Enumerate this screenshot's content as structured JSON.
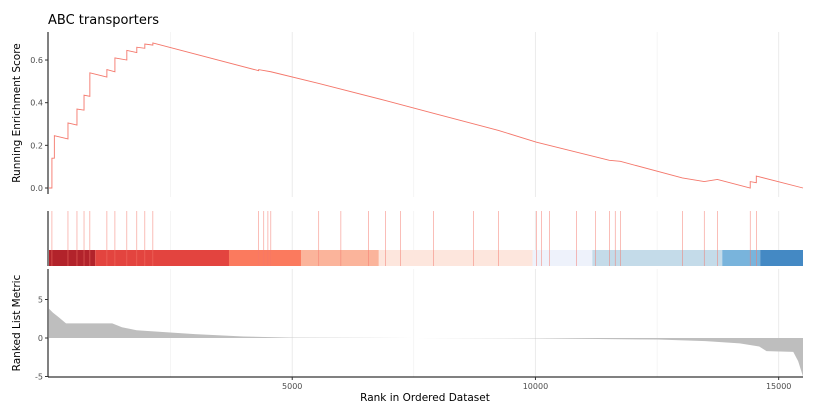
{
  "chart_data": {
    "type": "line",
    "title": "ABC transporters",
    "xlabel": "Rank in Ordered Dataset",
    "ylabel_top": "Running Enrichment Score",
    "ylabel_bottom": "Ranked List Metric",
    "xlim": [
      0,
      15500
    ],
    "x_ticks": [
      5000,
      10000,
      15000
    ],
    "x_tick_labels": [
      "5000",
      "10000",
      "15000"
    ],
    "es_ylim": [
      0,
      0.7
    ],
    "es_ticks": [
      0.0,
      0.2,
      0.4,
      0.6
    ],
    "es_tick_labels": [
      "0.0",
      "0.2",
      "0.4",
      "0.6"
    ],
    "metric_ylim": [
      -5,
      9
    ],
    "metric_ticks": [
      -5,
      0,
      5
    ],
    "metric_tick_labels": [
      "-5",
      "0",
      "5"
    ],
    "es_color": "#F4776B",
    "metric_color": "#BEBEBE",
    "running_es": [
      [
        0,
        0
      ],
      [
        60,
        0
      ],
      [
        60,
        0.14
      ],
      [
        110,
        0.14
      ],
      [
        110,
        0.245
      ],
      [
        390,
        0.23
      ],
      [
        390,
        0.305
      ],
      [
        575,
        0.295
      ],
      [
        575,
        0.37
      ],
      [
        720,
        0.365
      ],
      [
        720,
        0.435
      ],
      [
        840,
        0.43
      ],
      [
        840,
        0.54
      ],
      [
        1190,
        0.52
      ],
      [
        1190,
        0.555
      ],
      [
        1355,
        0.545
      ],
      [
        1355,
        0.61
      ],
      [
        1600,
        0.6
      ],
      [
        1600,
        0.645
      ],
      [
        1805,
        0.635
      ],
      [
        1805,
        0.66
      ],
      [
        1970,
        0.655
      ],
      [
        1970,
        0.675
      ],
      [
        2135,
        0.67
      ],
      [
        2135,
        0.68
      ],
      [
        4310,
        0.55
      ],
      [
        4310,
        0.555
      ],
      [
        4560,
        0.545
      ],
      [
        5545,
        0.49
      ],
      [
        6920,
        0.41
      ],
      [
        7905,
        0.35
      ],
      [
        9240,
        0.27
      ],
      [
        10020,
        0.215
      ],
      [
        11520,
        0.13
      ],
      [
        11745,
        0.125
      ],
      [
        13020,
        0.047
      ],
      [
        13470,
        0.03
      ],
      [
        13740,
        0.04
      ],
      [
        14415,
        0.0
      ],
      [
        14415,
        0.03
      ],
      [
        14540,
        0.025
      ],
      [
        14540,
        0.056
      ],
      [
        15500,
        0.0
      ]
    ],
    "hit_ranks": [
      60,
      390,
      575,
      720,
      840,
      1190,
      1355,
      1600,
      1805,
      1970,
      2135,
      4310,
      4415,
      4500,
      4560,
      5545,
      6000,
      6570,
      6920,
      7230,
      7905,
      8730,
      9240,
      10020,
      10120,
      10290,
      10840,
      11230,
      11520,
      11640,
      11745,
      13020,
      13470,
      13740,
      14415,
      14540
    ],
    "color_bands": [
      {
        "from": 0,
        "to": 950,
        "color": "#B2232B"
      },
      {
        "from": 950,
        "to": 3700,
        "color": "#E3443F"
      },
      {
        "from": 3700,
        "to": 5180,
        "color": "#FB7A5E"
      },
      {
        "from": 5180,
        "to": 6780,
        "color": "#FBB49B"
      },
      {
        "from": 6780,
        "to": 9940,
        "color": "#FDE6DD"
      },
      {
        "from": 9940,
        "to": 11170,
        "color": "#EEF2FB"
      },
      {
        "from": 11170,
        "to": 13840,
        "color": "#C4DBE9"
      },
      {
        "from": 13840,
        "to": 14620,
        "color": "#79B4DC"
      },
      {
        "from": 14620,
        "to": 15500,
        "color": "#4489C4"
      }
    ],
    "ranked_metric": [
      [
        0,
        3.8
      ],
      [
        80,
        3.3
      ],
      [
        200,
        2.7
      ],
      [
        350,
        1.9
      ],
      [
        1300,
        1.9
      ],
      [
        1500,
        1.4
      ],
      [
        1800,
        1.0
      ],
      [
        2300,
        0.8
      ],
      [
        3000,
        0.5
      ],
      [
        4000,
        0.2
      ],
      [
        5000,
        0.05
      ],
      [
        7500,
        0
      ],
      [
        10000,
        -0.05
      ],
      [
        12500,
        -0.2
      ],
      [
        13500,
        -0.4
      ],
      [
        14200,
        -0.7
      ],
      [
        14600,
        -1.1
      ],
      [
        14750,
        -1.7
      ],
      [
        15300,
        -1.8
      ],
      [
        15400,
        -3
      ],
      [
        15500,
        -5
      ]
    ]
  }
}
